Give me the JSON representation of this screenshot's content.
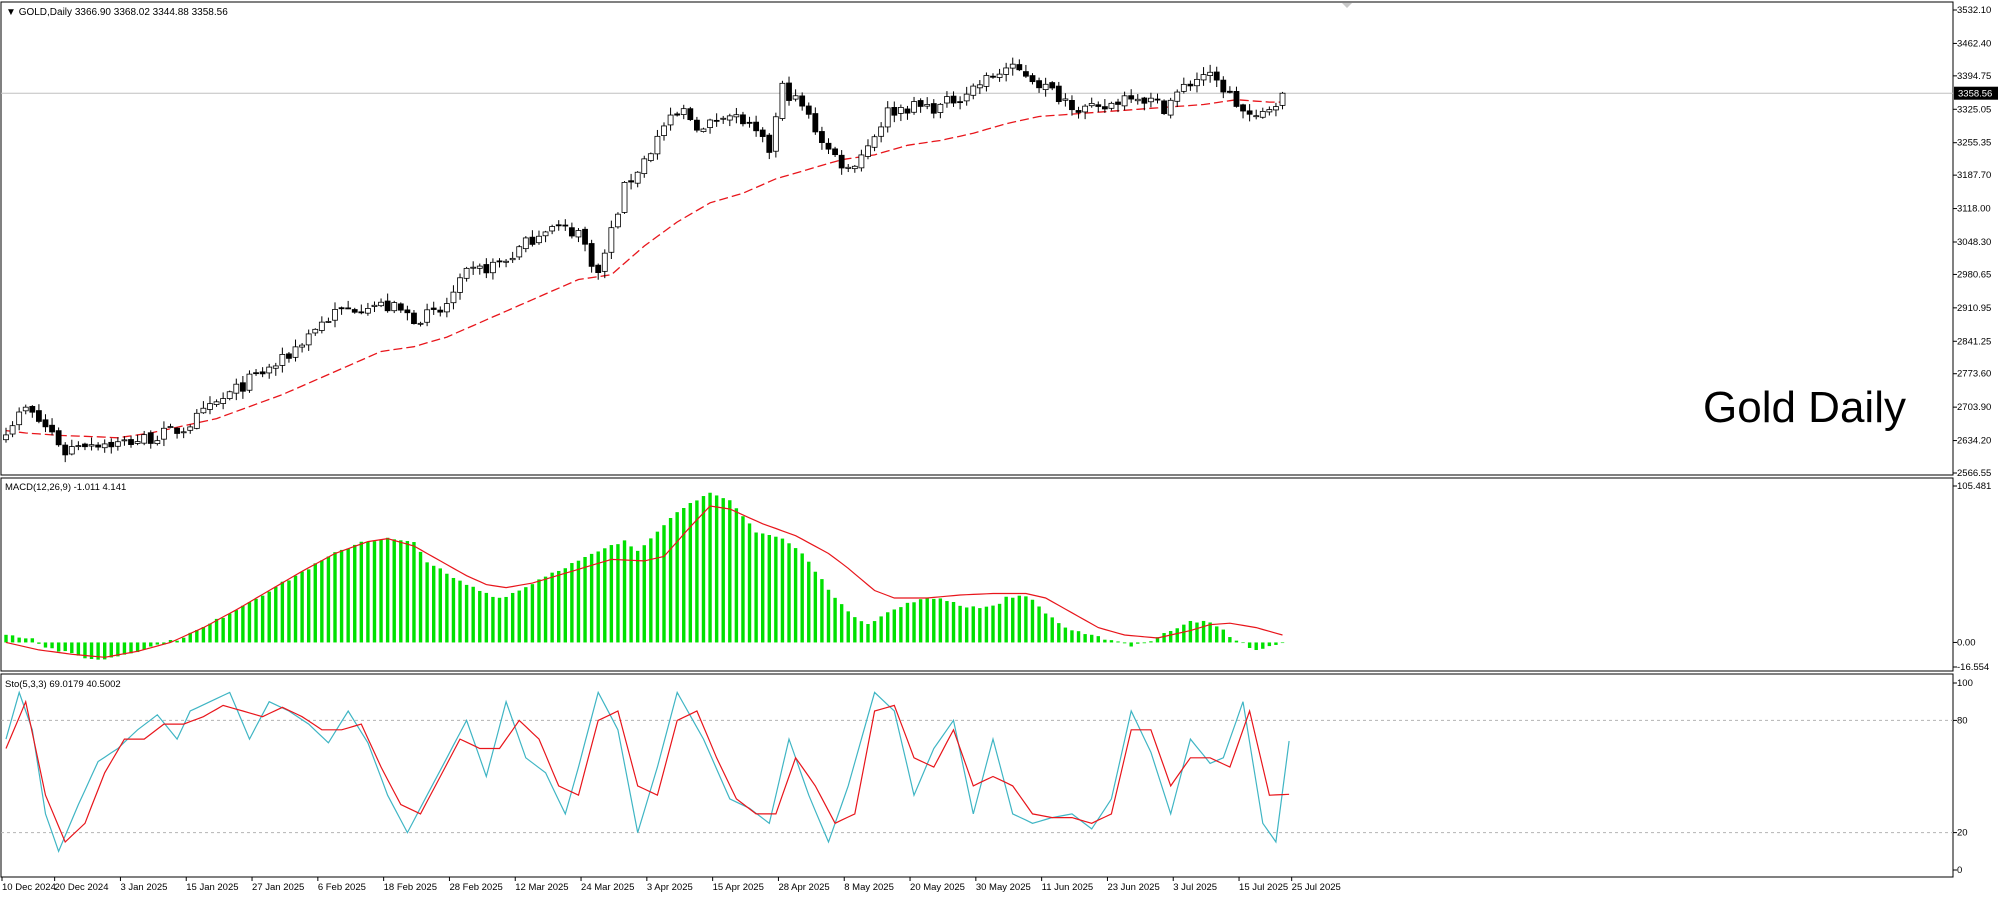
{
  "colors": {
    "background": "#ffffff",
    "frame": "#000000",
    "candle_body_up": "#ffffff",
    "candle_body_down": "#000000",
    "ma_line": "#e8151b",
    "macd_hist": "#00e000",
    "macd_signal": "#e8151b",
    "sto_main": "#3fb5c4",
    "sto_signal": "#e8151b",
    "price_line": "#c0c0c0",
    "level_line": "#b4b4b4"
  },
  "chart_data": [
    {
      "type": "candlestick",
      "title": "GOLD,Daily",
      "ohlc_label": "3366.90 3368.02 3344.88 3358.56",
      "annotation": "Gold Daily",
      "current_price": 3358.56,
      "current_price_label": "3358.56",
      "ylim": [
        2566.55,
        3532.1
      ],
      "y_ticks": [
        "3532.10",
        "3462.40",
        "3394.75",
        "3325.05",
        "3255.35",
        "3187.70",
        "3118.00",
        "3048.30",
        "2980.65",
        "2910.95",
        "2841.25",
        "2773.60",
        "2703.90",
        "2634.20",
        "2566.55"
      ],
      "x_ticks": [
        "10 Dec 2024",
        "20 Dec 2024",
        "3 Jan 2025",
        "15 Jan 2025",
        "27 Jan 2025",
        "6 Feb 2025",
        "18 Feb 2025",
        "28 Feb 2025",
        "12 Mar 2025",
        "24 Mar 2025",
        "3 Apr 2025",
        "15 Apr 2025",
        "28 Apr 2025",
        "8 May 2025",
        "20 May 2025",
        "30 May 2025",
        "11 Jun 2025",
        "23 Jun 2025",
        "3 Jul 2025",
        "15 Jul 2025",
        "25 Jul 2025"
      ],
      "close_path": [
        [
          0,
          2660
        ],
        [
          3,
          2700
        ],
        [
          7,
          2650
        ],
        [
          9,
          2610
        ],
        [
          11,
          2630
        ],
        [
          14,
          2630
        ],
        [
          17,
          2628
        ],
        [
          22,
          2640
        ],
        [
          27,
          2660
        ],
        [
          32,
          2710
        ],
        [
          37,
          2760
        ],
        [
          42,
          2800
        ],
        [
          47,
          2870
        ],
        [
          50,
          2900
        ],
        [
          55,
          2920
        ],
        [
          59,
          2910
        ],
        [
          62,
          2890
        ],
        [
          66,
          2900
        ],
        [
          70,
          2980
        ],
        [
          76,
          3010
        ],
        [
          82,
          3080
        ],
        [
          87,
          3070
        ],
        [
          90,
          2980
        ],
        [
          94,
          3160
        ],
        [
          98,
          3240
        ],
        [
          100,
          3290
        ],
        [
          103,
          3320
        ],
        [
          106,
          3280
        ],
        [
          109,
          3320
        ],
        [
          112,
          3300
        ],
        [
          116,
          3240
        ],
        [
          118,
          3370
        ],
        [
          121,
          3330
        ],
        [
          125,
          3240
        ],
        [
          128,
          3200
        ],
        [
          131,
          3250
        ],
        [
          134,
          3320
        ],
        [
          137,
          3330
        ],
        [
          142,
          3330
        ],
        [
          147,
          3370
        ],
        [
          152,
          3410
        ],
        [
          155,
          3400
        ],
        [
          158,
          3370
        ],
        [
          163,
          3330
        ],
        [
          166,
          3320
        ],
        [
          171,
          3360
        ],
        [
          176,
          3330
        ],
        [
          179,
          3370
        ],
        [
          182,
          3400
        ],
        [
          185,
          3370
        ],
        [
          188,
          3320
        ],
        [
          190,
          3300
        ],
        [
          192,
          3330
        ],
        [
          194,
          3358.56
        ]
      ],
      "ma_path": [
        [
          0,
          2655
        ],
        [
          3,
          2650
        ],
        [
          8,
          2645
        ],
        [
          14,
          2642
        ],
        [
          17,
          2640
        ],
        [
          22,
          2650
        ],
        [
          27,
          2665
        ],
        [
          32,
          2680
        ],
        [
          37,
          2705
        ],
        [
          42,
          2730
        ],
        [
          47,
          2760
        ],
        [
          52,
          2790
        ],
        [
          57,
          2820
        ],
        [
          62,
          2830
        ],
        [
          67,
          2850
        ],
        [
          72,
          2880
        ],
        [
          77,
          2910
        ],
        [
          82,
          2940
        ],
        [
          87,
          2970
        ],
        [
          92,
          2980
        ],
        [
          97,
          3040
        ],
        [
          102,
          3090
        ],
        [
          107,
          3130
        ],
        [
          112,
          3150
        ],
        [
          117,
          3180
        ],
        [
          122,
          3200
        ],
        [
          127,
          3220
        ],
        [
          132,
          3230
        ],
        [
          137,
          3250
        ],
        [
          142,
          3260
        ],
        [
          147,
          3275
        ],
        [
          152,
          3295
        ],
        [
          157,
          3310
        ],
        [
          162,
          3315
        ],
        [
          167,
          3320
        ],
        [
          172,
          3325
        ],
        [
          177,
          3330
        ],
        [
          182,
          3335
        ],
        [
          187,
          3345
        ],
        [
          192,
          3340
        ],
        [
          194,
          3340
        ]
      ]
    },
    {
      "type": "bar",
      "title": "MACD(12,26,9) -1.011 4.141",
      "ylim": [
        -16.554,
        105.481
      ],
      "y_ticks": [
        "105.481",
        "0.00",
        "-16.554"
      ],
      "histogram_path": [
        [
          0,
          5
        ],
        [
          4,
          3
        ],
        [
          6,
          -3
        ],
        [
          10,
          -8
        ],
        [
          14,
          -12
        ],
        [
          18,
          -8
        ],
        [
          22,
          -3
        ],
        [
          26,
          2
        ],
        [
          30,
          10
        ],
        [
          34,
          20
        ],
        [
          38,
          30
        ],
        [
          42,
          40
        ],
        [
          46,
          50
        ],
        [
          50,
          60
        ],
        [
          54,
          68
        ],
        [
          58,
          70
        ],
        [
          62,
          67
        ],
        [
          64,
          55
        ],
        [
          68,
          43
        ],
        [
          72,
          35
        ],
        [
          75,
          30
        ],
        [
          78,
          35
        ],
        [
          82,
          45
        ],
        [
          87,
          55
        ],
        [
          92,
          65
        ],
        [
          94,
          68
        ],
        [
          96,
          62
        ],
        [
          100,
          80
        ],
        [
          104,
          95
        ],
        [
          107,
          100
        ],
        [
          110,
          95
        ],
        [
          114,
          75
        ],
        [
          118,
          70
        ],
        [
          121,
          60
        ],
        [
          124,
          42
        ],
        [
          128,
          20
        ],
        [
          131,
          13
        ],
        [
          134,
          20
        ],
        [
          138,
          28
        ],
        [
          142,
          30
        ],
        [
          146,
          24
        ],
        [
          150,
          24
        ],
        [
          152,
          30
        ],
        [
          155,
          32
        ],
        [
          158,
          20
        ],
        [
          161,
          10
        ],
        [
          164,
          5
        ],
        [
          168,
          2
        ],
        [
          171,
          -2
        ],
        [
          174,
          1
        ],
        [
          177,
          8
        ],
        [
          180,
          15
        ],
        [
          183,
          13
        ],
        [
          185,
          8
        ],
        [
          187,
          1
        ],
        [
          190,
          -5
        ],
        [
          194,
          -1
        ]
      ],
      "signal_path": [
        [
          0,
          0
        ],
        [
          5,
          -5
        ],
        [
          10,
          -8
        ],
        [
          15,
          -10
        ],
        [
          20,
          -6
        ],
        [
          25,
          0
        ],
        [
          30,
          10
        ],
        [
          35,
          22
        ],
        [
          40,
          35
        ],
        [
          45,
          48
        ],
        [
          50,
          60
        ],
        [
          55,
          68
        ],
        [
          58,
          70
        ],
        [
          62,
          65
        ],
        [
          66,
          55
        ],
        [
          70,
          45
        ],
        [
          73,
          39
        ],
        [
          76,
          37
        ],
        [
          80,
          40
        ],
        [
          86,
          48
        ],
        [
          92,
          56
        ],
        [
          97,
          55
        ],
        [
          100,
          58
        ],
        [
          104,
          78
        ],
        [
          107,
          92
        ],
        [
          110,
          90
        ],
        [
          115,
          80
        ],
        [
          120,
          72
        ],
        [
          125,
          60
        ],
        [
          128,
          50
        ],
        [
          132,
          35
        ],
        [
          135,
          30
        ],
        [
          140,
          30
        ],
        [
          145,
          32
        ],
        [
          150,
          33
        ],
        [
          155,
          33
        ],
        [
          158,
          30
        ],
        [
          162,
          20
        ],
        [
          166,
          10
        ],
        [
          170,
          5
        ],
        [
          175,
          3
        ],
        [
          180,
          8
        ],
        [
          183,
          12
        ],
        [
          186,
          13
        ],
        [
          190,
          10
        ],
        [
          194,
          5
        ]
      ]
    },
    {
      "type": "line",
      "title": "Sto(5,3,3) 69.0179 40.5002",
      "ylim": [
        0,
        100
      ],
      "y_ticks": [
        "100",
        "80",
        "20",
        "0"
      ],
      "levels": [
        80,
        20
      ],
      "k_path": [
        [
          0,
          70
        ],
        [
          2,
          95
        ],
        [
          4,
          75
        ],
        [
          6,
          30
        ],
        [
          8,
          10
        ],
        [
          11,
          35
        ],
        [
          14,
          58
        ],
        [
          17,
          65
        ],
        [
          20,
          75
        ],
        [
          23,
          83
        ],
        [
          26,
          70
        ],
        [
          28,
          85
        ],
        [
          31,
          90
        ],
        [
          34,
          95
        ],
        [
          37,
          70
        ],
        [
          40,
          90
        ],
        [
          43,
          85
        ],
        [
          46,
          78
        ],
        [
          49,
          68
        ],
        [
          52,
          85
        ],
        [
          55,
          68
        ],
        [
          58,
          40
        ],
        [
          61,
          20
        ],
        [
          64,
          40
        ],
        [
          67,
          60
        ],
        [
          70,
          80
        ],
        [
          73,
          50
        ],
        [
          76,
          90
        ],
        [
          79,
          60
        ],
        [
          82,
          52
        ],
        [
          85,
          30
        ],
        [
          87,
          55
        ],
        [
          90,
          95
        ],
        [
          93,
          75
        ],
        [
          96,
          20
        ],
        [
          99,
          55
        ],
        [
          102,
          95
        ],
        [
          106,
          70
        ],
        [
          110,
          38
        ],
        [
          113,
          33
        ],
        [
          116,
          25
        ],
        [
          119,
          70
        ],
        [
          122,
          40
        ],
        [
          125,
          15
        ],
        [
          128,
          45
        ],
        [
          132,
          95
        ],
        [
          135,
          85
        ],
        [
          138,
          40
        ],
        [
          141,
          65
        ],
        [
          144,
          80
        ],
        [
          147,
          30
        ],
        [
          150,
          70
        ],
        [
          153,
          30
        ],
        [
          156,
          25
        ],
        [
          159,
          28
        ],
        [
          162,
          30
        ],
        [
          165,
          22
        ],
        [
          168,
          38
        ],
        [
          171,
          85
        ],
        [
          174,
          63
        ],
        [
          177,
          30
        ],
        [
          180,
          70
        ],
        [
          183,
          57
        ],
        [
          185,
          60
        ],
        [
          188,
          90
        ],
        [
          191,
          25
        ],
        [
          193,
          15
        ],
        [
          195,
          69
        ]
      ],
      "d_path": [
        [
          0,
          65
        ],
        [
          3,
          90
        ],
        [
          6,
          40
        ],
        [
          9,
          15
        ],
        [
          12,
          25
        ],
        [
          15,
          52
        ],
        [
          18,
          70
        ],
        [
          21,
          70
        ],
        [
          24,
          78
        ],
        [
          27,
          78
        ],
        [
          30,
          82
        ],
        [
          33,
          88
        ],
        [
          36,
          85
        ],
        [
          39,
          82
        ],
        [
          42,
          87
        ],
        [
          45,
          82
        ],
        [
          48,
          75
        ],
        [
          51,
          75
        ],
        [
          54,
          78
        ],
        [
          57,
          55
        ],
        [
          60,
          35
        ],
        [
          63,
          30
        ],
        [
          66,
          50
        ],
        [
          69,
          70
        ],
        [
          72,
          65
        ],
        [
          75,
          65
        ],
        [
          78,
          80
        ],
        [
          81,
          70
        ],
        [
          84,
          45
        ],
        [
          87,
          40
        ],
        [
          90,
          80
        ],
        [
          93,
          85
        ],
        [
          96,
          45
        ],
        [
          99,
          40
        ],
        [
          102,
          80
        ],
        [
          105,
          85
        ],
        [
          108,
          60
        ],
        [
          111,
          38
        ],
        [
          114,
          30
        ],
        [
          117,
          30
        ],
        [
          120,
          60
        ],
        [
          123,
          45
        ],
        [
          126,
          25
        ],
        [
          129,
          30
        ],
        [
          132,
          85
        ],
        [
          135,
          88
        ],
        [
          138,
          60
        ],
        [
          141,
          55
        ],
        [
          144,
          75
        ],
        [
          147,
          45
        ],
        [
          150,
          50
        ],
        [
          153,
          45
        ],
        [
          156,
          30
        ],
        [
          159,
          28
        ],
        [
          162,
          28
        ],
        [
          165,
          25
        ],
        [
          168,
          30
        ],
        [
          171,
          75
        ],
        [
          174,
          75
        ],
        [
          177,
          45
        ],
        [
          180,
          60
        ],
        [
          183,
          60
        ],
        [
          186,
          55
        ],
        [
          189,
          85
        ],
        [
          192,
          40
        ],
        [
          195,
          40.5
        ]
      ]
    }
  ]
}
